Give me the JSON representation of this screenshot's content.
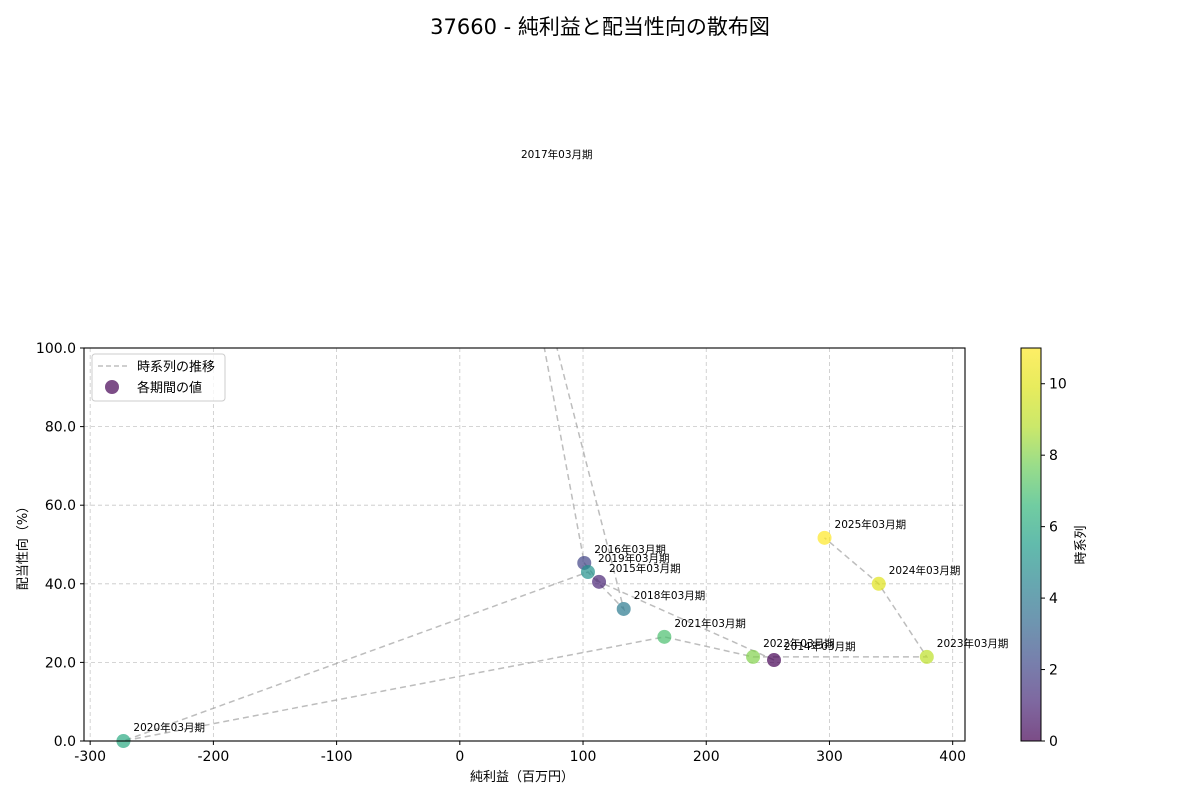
{
  "chart_data": {
    "type": "scatter",
    "title": "37660 - 純利益と配当性向の散布図",
    "xlabel": "純利益（百万円）",
    "ylabel": "配当性向（%）",
    "xlim": [
      -305,
      410
    ],
    "ylim": [
      0,
      100
    ],
    "xticks": [
      -300,
      -200,
      -100,
      0,
      100,
      200,
      300,
      400
    ],
    "xtick_labels": [
      "-300",
      "-200",
      "-100",
      "0",
      "100",
      "200",
      "300",
      "400"
    ],
    "yticks": [
      0,
      20,
      40,
      60,
      80,
      100
    ],
    "ytick_labels": [
      "0.0",
      "20.0",
      "40.0",
      "60.0",
      "80.0",
      "100.0"
    ],
    "grid": true,
    "legend": {
      "position": "upper left",
      "entries": [
        "時系列の推移",
        "各期間の値"
      ]
    },
    "colorbar": {
      "label": "時系列",
      "colormap": "viridis",
      "range": [
        0,
        11
      ],
      "ticks": [
        0,
        2,
        4,
        6,
        8,
        10
      ],
      "tick_labels": [
        "0",
        "2",
        "4",
        "6",
        "8",
        "10"
      ]
    },
    "points": [
      {
        "label": "2014年03月期",
        "x": 255,
        "y": 20.6,
        "t": 0
      },
      {
        "label": "2015年03月期",
        "x": 113,
        "y": 40.5,
        "t": 1
      },
      {
        "label": "2016年03月期",
        "x": 101,
        "y": 45.3,
        "t": 2
      },
      {
        "label": "2017年03月期",
        "x": 41.5,
        "y": 145.8,
        "t": 3
      },
      {
        "label": "2018年03月期",
        "x": 133,
        "y": 33.6,
        "t": 4
      },
      {
        "label": "2019年03月期",
        "x": 104,
        "y": 43.0,
        "t": 5
      },
      {
        "label": "2020年03月期",
        "x": -273,
        "y": 0.0,
        "t": 6
      },
      {
        "label": "2021年03月期",
        "x": 166,
        "y": 26.5,
        "t": 7
      },
      {
        "label": "2022年03月期",
        "x": 238,
        "y": 21.4,
        "t": 8
      },
      {
        "label": "2023年03月期",
        "x": 379,
        "y": 21.4,
        "t": 9
      },
      {
        "label": "2024年03月期",
        "x": 340,
        "y": 40.0,
        "t": 10
      },
      {
        "label": "2025年03月期",
        "x": 296,
        "y": 51.7,
        "t": 11
      }
    ]
  }
}
